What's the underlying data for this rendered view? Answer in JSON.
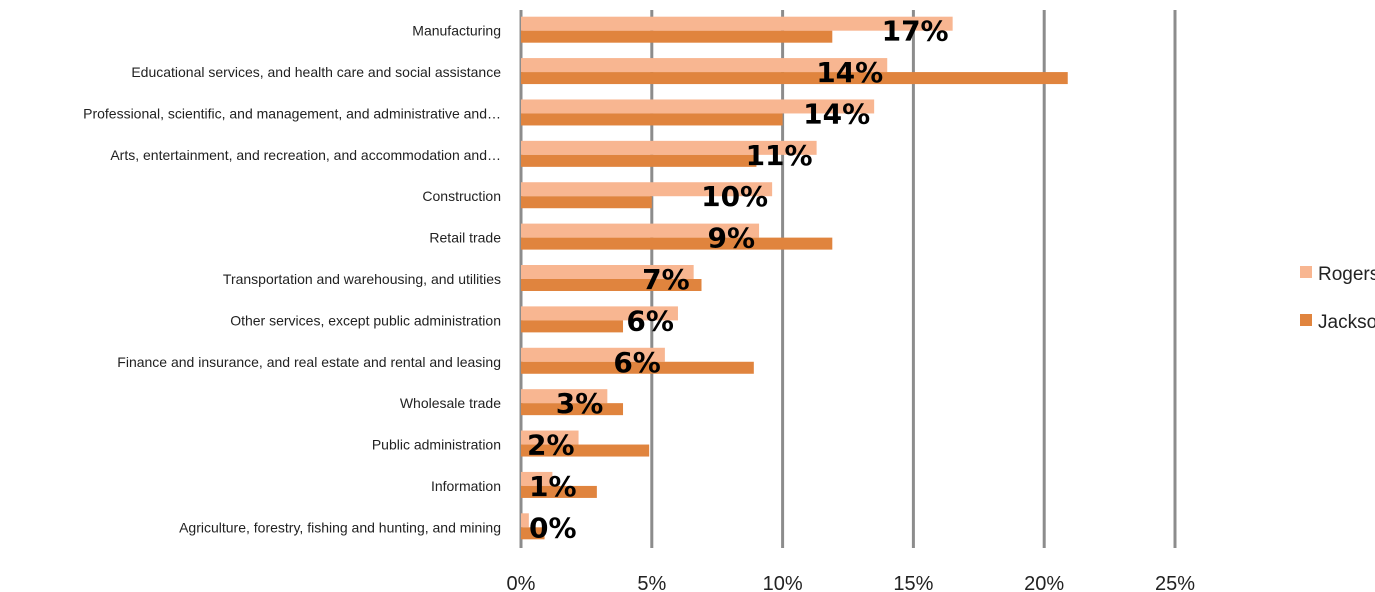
{
  "chart_data": {
    "type": "bar",
    "orientation": "horizontal",
    "categories": [
      "Manufacturing",
      "Educational services, and health care and social assistance",
      "Professional, scientific, and management, and administrative and…",
      "Arts, entertainment, and recreation, and accommodation and…",
      "Construction",
      "Retail trade",
      "Transportation and warehousing, and utilities",
      "Other services, except public administration",
      "Finance and insurance, and real estate and rental and leasing",
      "Wholesale trade",
      "Public administration",
      "Information",
      "Agriculture, forestry, fishing and hunting, and mining"
    ],
    "series": [
      {
        "name": "Rogers",
        "color": "#f8b691",
        "values": [
          16.5,
          14.0,
          13.5,
          11.3,
          9.6,
          9.1,
          6.6,
          6.0,
          5.5,
          3.3,
          2.2,
          1.2,
          0.3
        ]
      },
      {
        "name": "Jackson",
        "color": "#e0843e",
        "values": [
          11.9,
          20.9,
          10.0,
          9.0,
          5.0,
          11.9,
          6.9,
          3.9,
          8.9,
          3.9,
          4.9,
          2.9,
          0.9
        ]
      }
    ],
    "data_labels": [
      "17%",
      "14%",
      "14%",
      "11%",
      "10%",
      "9%",
      "7%",
      "6%",
      "6%",
      "3%",
      "2%",
      "1%",
      "0%"
    ],
    "x_ticks": [
      "0%",
      "5%",
      "10%",
      "15%",
      "20%",
      "25%"
    ],
    "xlim": [
      0,
      25
    ],
    "grid": true,
    "legend_position": "right",
    "title": "",
    "xlabel": "",
    "ylabel": ""
  }
}
